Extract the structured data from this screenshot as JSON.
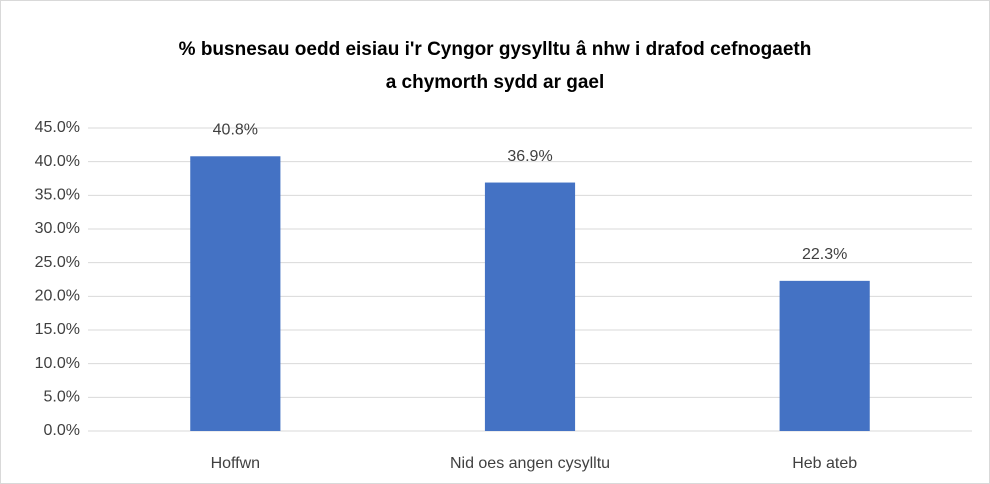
{
  "chart_data": {
    "type": "bar",
    "title": [
      "% busnesau oedd eisiau i'r Cyngor gysylltu â nhw i drafod cefnogaeth",
      "a chymorth sydd ar gael"
    ],
    "categories": [
      "Hoffwn",
      "Nid oes angen cysylltu",
      "Heb ateb"
    ],
    "values": [
      40.8,
      36.9,
      22.3
    ],
    "value_labels": [
      "40.8%",
      "36.9%",
      "22.3%"
    ],
    "color": "#4472c4",
    "ylim": [
      0,
      45
    ],
    "yticks": [
      {
        "value": 0,
        "label": "0.0%"
      },
      {
        "value": 5,
        "label": "5.0%"
      },
      {
        "value": 10,
        "label": "10.0%"
      },
      {
        "value": 15,
        "label": "15.0%"
      },
      {
        "value": 20,
        "label": "20.0%"
      },
      {
        "value": 25,
        "label": "25.0%"
      },
      {
        "value": 30,
        "label": "30.0%"
      },
      {
        "value": 35,
        "label": "35.0%"
      },
      {
        "value": 40,
        "label": "40.0%"
      },
      {
        "value": 45,
        "label": "45.0%"
      }
    ],
    "grid": true
  }
}
